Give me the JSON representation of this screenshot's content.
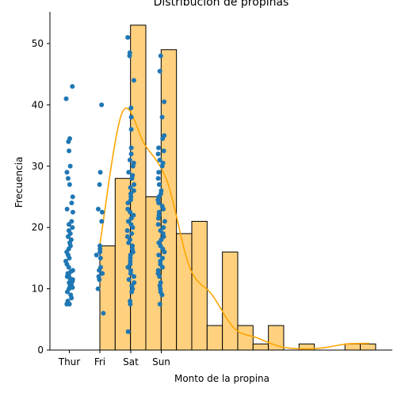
{
  "chart_data": {
    "type": "bar",
    "title": "Distribución de propinas",
    "xlabel": "Monto de la propina",
    "ylabel": "Frecuencia",
    "ylim": [
      0,
      55
    ],
    "yticks": [
      0,
      10,
      20,
      30,
      40,
      50
    ],
    "x_categories": [
      "Thur",
      "Fri",
      "Sat",
      "Sun"
    ],
    "histogram": {
      "bins": [
        {
          "count": 17
        },
        {
          "count": 28
        },
        {
          "count": 53
        },
        {
          "count": 25
        },
        {
          "count": 49
        },
        {
          "count": 19
        },
        {
          "count": 21
        },
        {
          "count": 4
        },
        {
          "count": 16
        },
        {
          "count": 4
        },
        {
          "count": 1
        },
        {
          "count": 4
        },
        {
          "count": 0
        },
        {
          "count": 1
        },
        {
          "count": 0
        },
        {
          "count": 0
        },
        {
          "count": 1
        },
        {
          "count": 1
        }
      ],
      "bar_color": "#ffd17f",
      "edge_color": "#000000"
    },
    "kde": {
      "color": "#ffa500",
      "values": [
        17.2,
        38.8,
        33.5,
        27.5,
        13.5,
        9.0,
        3.5,
        2.0,
        0.6,
        0.2,
        0.4,
        1.0,
        1.1
      ]
    },
    "strip": {
      "color": "#1f77b4",
      "series": [
        {
          "category": "Thur",
          "values": [
            43,
            41,
            34.5,
            34,
            32.5,
            30,
            29,
            28,
            27,
            25,
            24,
            23,
            22.5,
            21,
            20.5,
            20,
            19.5,
            19,
            18.5,
            18,
            17.5,
            17,
            16.5,
            16,
            15.5,
            15,
            14.5,
            14,
            13.5,
            13,
            12.8,
            12.5,
            12.2,
            12,
            11.7,
            11.5,
            11.2,
            11,
            10.7,
            10.5,
            10.2,
            10,
            9.5,
            9,
            8.5,
            8,
            7.5,
            7.5
          ]
        },
        {
          "category": "Fri",
          "values": [
            40,
            29,
            27,
            23,
            22.5,
            21,
            17,
            16.5,
            16,
            15.5,
            15,
            13.5,
            13,
            12.5,
            12,
            11.5,
            10,
            6
          ]
        },
        {
          "category": "Sat",
          "values": [
            51,
            48.5,
            48,
            44,
            39.5,
            38,
            36,
            33,
            32,
            31,
            30.5,
            30,
            29,
            28.5,
            28,
            27,
            26.5,
            26,
            25.5,
            25,
            24.5,
            24,
            23,
            22.5,
            22,
            21.5,
            21,
            20.5,
            20,
            19.5,
            19,
            18.5,
            18,
            17.5,
            17,
            16.5,
            16,
            15.5,
            15,
            14.5,
            14,
            13.5,
            13,
            12.5,
            12,
            11.5,
            11,
            10.5,
            10,
            9.5,
            8,
            7.5,
            3
          ]
        },
        {
          "category": "Sun",
          "values": [
            48,
            45.5,
            40.5,
            38,
            35,
            34.5,
            33,
            32.5,
            32,
            31,
            30.5,
            30,
            29,
            28,
            27,
            26,
            25.5,
            25,
            24.5,
            24,
            23.5,
            23,
            22.5,
            22,
            21.5,
            21,
            20.5,
            20,
            19.5,
            19,
            18.5,
            18,
            17.5,
            17,
            16.5,
            16,
            15.5,
            15,
            14.5,
            14,
            13.5,
            13,
            12.5,
            12,
            11,
            10.5,
            10,
            9.5,
            9,
            7.5
          ]
        }
      ]
    }
  }
}
